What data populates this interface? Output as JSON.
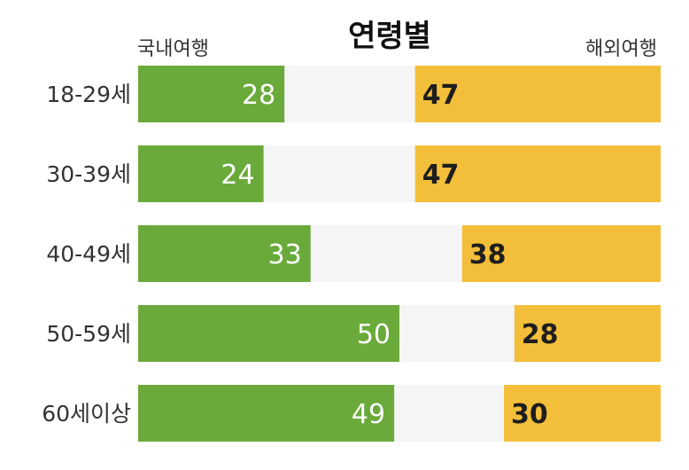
{
  "colors": {
    "domestic": "#6aaa3a",
    "overseas": "#f3bf3a",
    "track": "#f5f5f5",
    "text": "#333333"
  },
  "chart_data": {
    "type": "bar",
    "title": "연령별",
    "categories": [
      "18-29세",
      "30-39세",
      "40-49세",
      "50-59세",
      "60세이상"
    ],
    "series": [
      {
        "name": "국내여행",
        "values": [
          28,
          24,
          33,
          50,
          49
        ]
      },
      {
        "name": "해외여행",
        "values": [
          47,
          47,
          38,
          28,
          30
        ]
      }
    ],
    "xlim": [
      0,
      100
    ],
    "grid": false,
    "legend_position": "top"
  }
}
